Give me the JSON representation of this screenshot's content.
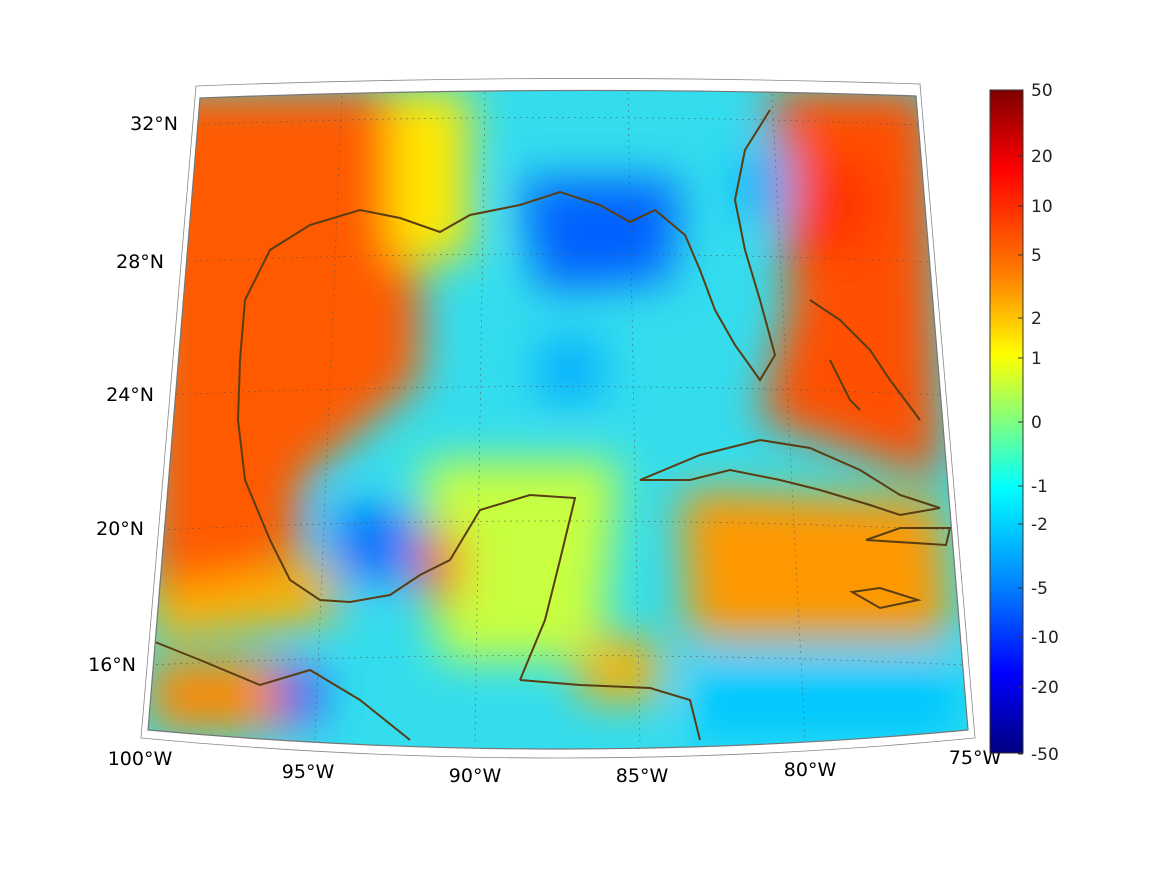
{
  "map": {
    "lon_labels": [
      "100°W",
      "95°W",
      "90°W",
      "85°W",
      "80°W",
      "75°W"
    ],
    "lat_labels": [
      "32°N",
      "28°N",
      "24°N",
      "20°N",
      "16°N"
    ],
    "colorbar": {
      "tick_labels": [
        "50",
        "20",
        "10",
        "5",
        "2",
        "1",
        "0",
        "-1",
        "-2",
        "-5",
        "-10",
        "-20",
        "-50"
      ],
      "colormap": "jet",
      "colors": [
        "#7f0000",
        "#ff0000",
        "#ff8000",
        "#ffff00",
        "#80ff80",
        "#00ffff",
        "#0080ff",
        "#0000ff",
        "#00007f"
      ]
    },
    "coastline_color": "#5a3d12",
    "gridline_style": "dotted"
  }
}
